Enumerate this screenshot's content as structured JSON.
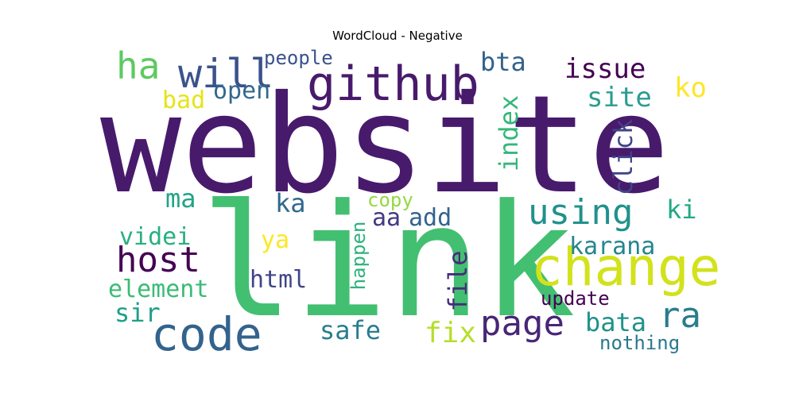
{
  "title": "WordCloud - Negative",
  "words": [
    {
      "text": "website",
      "color": "#481a6c",
      "rotated": false
    },
    {
      "text": "link",
      "color": "#43bf71",
      "rotated": false
    },
    {
      "text": "github",
      "color": "#481a6c",
      "rotated": false
    },
    {
      "text": "change",
      "color": "#d2e21b",
      "rotated": false
    },
    {
      "text": "code",
      "color": "#33638d",
      "rotated": false
    },
    {
      "text": "will",
      "color": "#3b528b",
      "rotated": false
    },
    {
      "text": "ha",
      "color": "#5ec962",
      "rotated": false
    },
    {
      "text": "host",
      "color": "#440154",
      "rotated": false
    },
    {
      "text": "using",
      "color": "#21918c",
      "rotated": false
    },
    {
      "text": "page",
      "color": "#482677",
      "rotated": false
    },
    {
      "text": "ra",
      "color": "#287d8e",
      "rotated": false
    },
    {
      "text": "bta",
      "color": "#33638d",
      "rotated": false
    },
    {
      "text": "issue",
      "color": "#440154",
      "rotated": false
    },
    {
      "text": "ko",
      "color": "#fde725",
      "rotated": false
    },
    {
      "text": "site",
      "color": "#2a9d8f",
      "rotated": false
    },
    {
      "text": "index",
      "color": "#35b779",
      "rotated": true
    },
    {
      "text": "click",
      "color": "#414487",
      "rotated": true
    },
    {
      "text": "people",
      "color": "#3b528b",
      "rotated": false
    },
    {
      "text": "open",
      "color": "#31688e",
      "rotated": false
    },
    {
      "text": "bad",
      "color": "#e5e419",
      "rotated": false
    },
    {
      "text": "ma",
      "color": "#20a486",
      "rotated": false
    },
    {
      "text": "ka",
      "color": "#31688e",
      "rotated": false
    },
    {
      "text": "copy",
      "color": "#95d840",
      "rotated": false
    },
    {
      "text": "aa",
      "color": "#443983",
      "rotated": false
    },
    {
      "text": "add",
      "color": "#33638d",
      "rotated": false
    },
    {
      "text": "ki",
      "color": "#22a884",
      "rotated": false
    },
    {
      "text": "videi",
      "color": "#29af7f",
      "rotated": false
    },
    {
      "text": "ya",
      "color": "#fde725",
      "rotated": false
    },
    {
      "text": "karana",
      "color": "#25858e",
      "rotated": false
    },
    {
      "text": "element",
      "color": "#3bbb75",
      "rotated": false
    },
    {
      "text": "html",
      "color": "#414487",
      "rotated": false
    },
    {
      "text": "happen",
      "color": "#2db27d",
      "rotated": true
    },
    {
      "text": "file",
      "color": "#472d7b",
      "rotated": true
    },
    {
      "text": "update",
      "color": "#440154",
      "rotated": false
    },
    {
      "text": "sir",
      "color": "#1f9e89",
      "rotated": false
    },
    {
      "text": "safe",
      "color": "#287d8e",
      "rotated": false
    },
    {
      "text": "fix",
      "color": "#b5de2b",
      "rotated": false
    },
    {
      "text": "bata",
      "color": "#21918c",
      "rotated": false
    },
    {
      "text": "nothing",
      "color": "#2a788e",
      "rotated": false
    }
  ]
}
